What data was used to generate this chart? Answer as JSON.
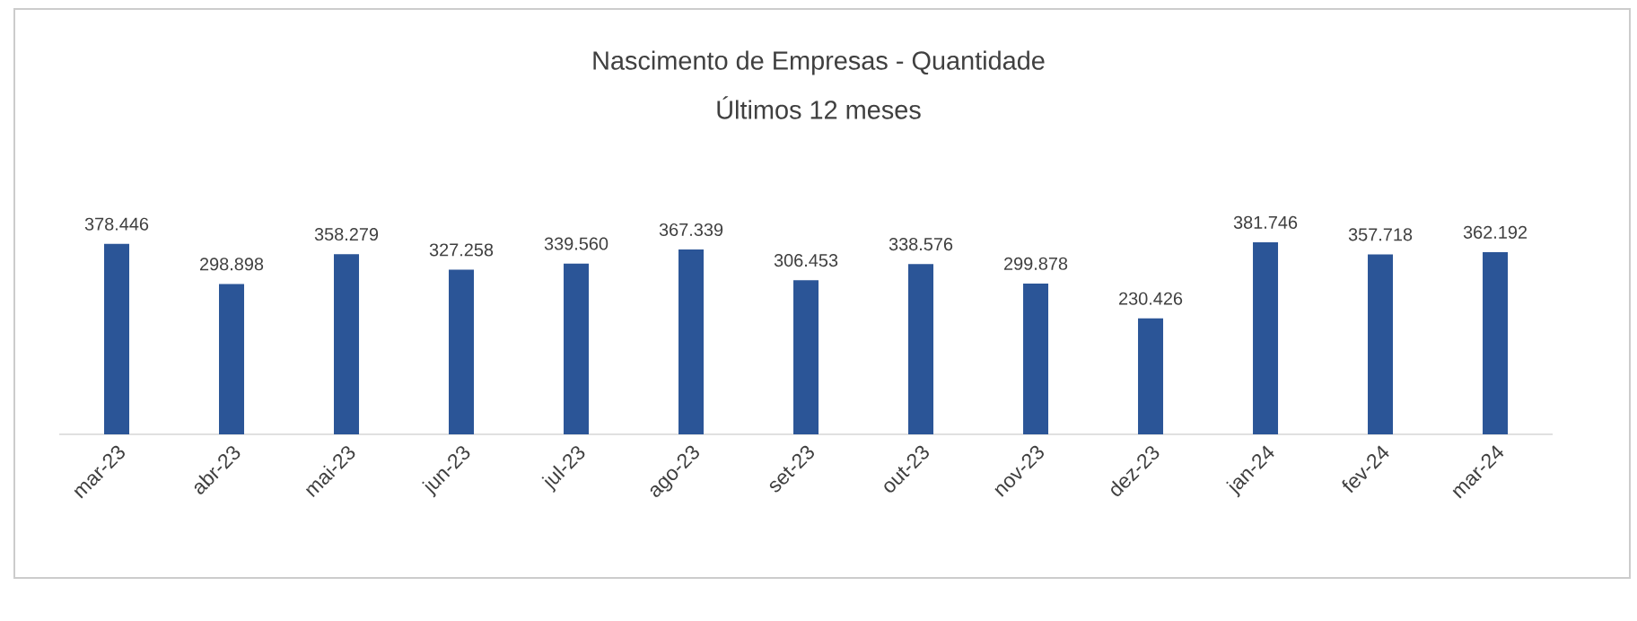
{
  "chart_data": {
    "type": "bar",
    "title": "Nascimento de Empresas - Quantidade",
    "subtitle": "Últimos 12 meses",
    "categories": [
      "mar-23",
      "abr-23",
      "mai-23",
      "jun-23",
      "jul-23",
      "ago-23",
      "set-23",
      "out-23",
      "nov-23",
      "dez-23",
      "jan-24",
      "fev-24",
      "mar-24"
    ],
    "values": [
      378446,
      298898,
      358279,
      327258,
      339560,
      367339,
      306453,
      338576,
      299878,
      230426,
      381746,
      357718,
      362192
    ],
    "value_labels": [
      "378.446",
      "298.898",
      "358.279",
      "327.258",
      "339.560",
      "367.339",
      "306.453",
      "338.576",
      "299.878",
      "230.426",
      "381.746",
      "357.718",
      "362.192"
    ],
    "color": "#2b5597"
  }
}
